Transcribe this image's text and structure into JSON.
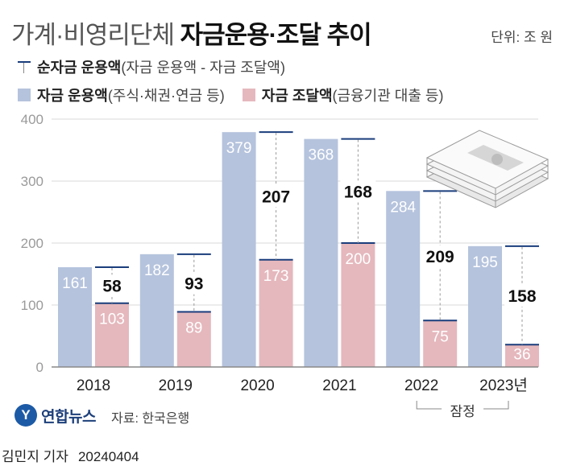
{
  "title": {
    "light": "가계·비영리단체",
    "bold": "자금운용·조달 추이"
  },
  "unit": "단위: 조 원",
  "legend": {
    "net": {
      "bold": "순자금 운용액",
      "note": "(자금 운용액 - 자금 조달액)"
    },
    "use": {
      "bold": "자금 운용액",
      "note": "(주식·채권·연금 등)"
    },
    "raise": {
      "bold": "자금 조달액",
      "note": "(금융기관 대출 등)"
    }
  },
  "colors": {
    "use": "#b5c3dd",
    "raise": "#e5b8bd",
    "net": "#1a3d7c",
    "grid": "#d9d9d9",
    "axis": "#888888"
  },
  "chart_data": {
    "type": "bar",
    "categories": [
      "2018",
      "2019",
      "2020",
      "2021",
      "2022",
      "2023년"
    ],
    "series": [
      {
        "name": "자금 운용액",
        "values": [
          161,
          182,
          379,
          368,
          284,
          195
        ]
      },
      {
        "name": "자금 조달액",
        "values": [
          103,
          89,
          173,
          200,
          75,
          36
        ]
      },
      {
        "name": "순자금 운용액",
        "values": [
          58,
          93,
          207,
          168,
          209,
          158
        ]
      }
    ],
    "y_ticks": [
      "0",
      "100",
      "200",
      "300",
      "400"
    ],
    "ylim": [
      0,
      400
    ],
    "grid": true,
    "bracket_label": "잠정"
  },
  "footer": {
    "logo_mark": "Y",
    "logo_text": "연합뉴스",
    "source": "자료: 한국은행",
    "reporter": "김민지 기자",
    "date": "20240404"
  }
}
